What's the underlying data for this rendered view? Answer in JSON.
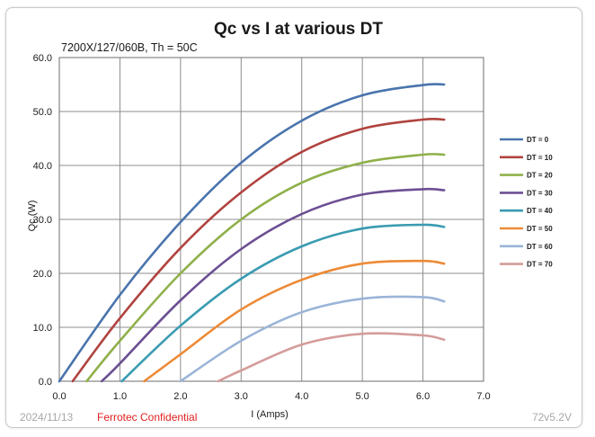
{
  "chart_data": {
    "type": "line",
    "title": "Qc vs I at various DT",
    "subtitle": "7200X/127/060B, Th = 50C",
    "xlabel": "I (Amps)",
    "ylabel": "Qc (W)",
    "xlim": [
      0,
      7
    ],
    "ylim": [
      0,
      60
    ],
    "x_ticks": [
      "0.0",
      "1.0",
      "2.0",
      "3.0",
      "4.0",
      "5.0",
      "6.0",
      "7.0"
    ],
    "y_ticks": [
      "0.0",
      "10.0",
      "20.0",
      "30.0",
      "40.0",
      "50.0",
      "60.0"
    ],
    "grid": true,
    "legend_position": "right",
    "series": [
      {
        "name": "DT = 0",
        "color": "#4a74ad",
        "x": [
          0.0,
          1.0,
          2.0,
          3.0,
          4.0,
          5.0,
          6.0,
          6.35
        ],
        "y": [
          0.0,
          16.0,
          29.5,
          40.5,
          48.3,
          53.0,
          54.9,
          55.0
        ]
      },
      {
        "name": "DT = 10",
        "color": "#b0433f",
        "x": [
          0.22,
          1.0,
          2.0,
          3.0,
          4.0,
          5.0,
          6.0,
          6.35
        ],
        "y": [
          0.0,
          11.7,
          24.7,
          35.0,
          42.5,
          46.8,
          48.5,
          48.5
        ]
      },
      {
        "name": "DT = 20",
        "color": "#8fb04a",
        "x": [
          0.45,
          1.0,
          2.0,
          3.0,
          4.0,
          5.0,
          6.0,
          6.35
        ],
        "y": [
          0.0,
          7.5,
          20.0,
          30.0,
          36.8,
          40.5,
          42.0,
          42.0
        ]
      },
      {
        "name": "DT = 30",
        "color": "#6c4f93",
        "x": [
          0.7,
          1.0,
          2.0,
          3.0,
          4.0,
          5.0,
          6.0,
          6.35
        ],
        "y": [
          0.0,
          3.3,
          15.0,
          24.5,
          31.0,
          34.6,
          35.6,
          35.4
        ]
      },
      {
        "name": "DT = 40",
        "color": "#3a9bb1",
        "x": [
          1.03,
          2.0,
          3.0,
          4.0,
          5.0,
          6.0,
          6.35
        ],
        "y": [
          0.0,
          10.3,
          19.0,
          25.0,
          28.3,
          29.0,
          28.6
        ]
      },
      {
        "name": "DT = 50",
        "color": "#ed8a36",
        "x": [
          1.4,
          2.0,
          3.0,
          4.0,
          5.0,
          6.0,
          6.35
        ],
        "y": [
          0.0,
          5.0,
          13.3,
          18.8,
          21.8,
          22.3,
          21.8
        ]
      },
      {
        "name": "DT = 60",
        "color": "#9bb4d7",
        "x": [
          2.0,
          3.0,
          4.0,
          5.0,
          6.0,
          6.35
        ],
        "y": [
          0.0,
          7.5,
          12.8,
          15.3,
          15.6,
          14.8
        ]
      },
      {
        "name": "DT = 70",
        "color": "#d49c9a",
        "x": [
          2.62,
          3.0,
          4.0,
          5.0,
          6.0,
          6.35
        ],
        "y": [
          0.0,
          2.0,
          6.8,
          8.8,
          8.5,
          7.7
        ]
      }
    ]
  },
  "footer": {
    "date": "2024/11/13",
    "confidential": "Ferrotec Confidential",
    "version": "72v5.2V"
  }
}
